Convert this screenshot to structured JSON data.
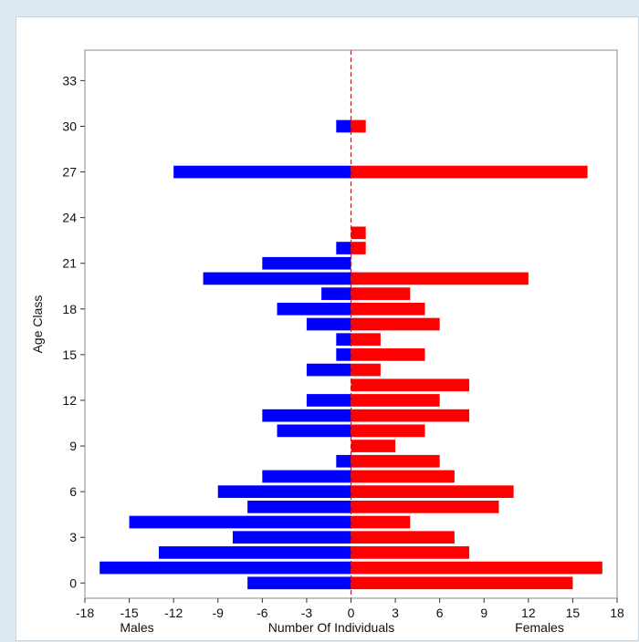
{
  "chart_data": {
    "type": "bar",
    "orientation": "horizontal",
    "layout": "population-pyramid",
    "ylabel": "Age Class",
    "xlabel": "Number Of Individuals",
    "left_label": "Males",
    "right_label": "Females",
    "xlim": [
      -18,
      18
    ],
    "xticks": [
      -18,
      -15,
      -12,
      -9,
      -6,
      -3,
      0,
      3,
      6,
      9,
      12,
      15,
      18
    ],
    "ylim": [
      -1,
      35
    ],
    "yticks": [
      0,
      3,
      6,
      9,
      12,
      15,
      18,
      21,
      24,
      27,
      30,
      33
    ],
    "grid": false,
    "zero_line": "dashed",
    "categories": [
      0,
      1,
      2,
      3,
      4,
      5,
      6,
      7,
      8,
      9,
      10,
      11,
      12,
      13,
      14,
      15,
      16,
      17,
      18,
      19,
      20,
      21,
      22,
      23,
      24,
      25,
      26,
      27,
      28,
      29,
      30,
      31,
      32,
      33
    ],
    "series": [
      {
        "name": "Males",
        "color": "#0000ff",
        "values": [
          -7,
          -17,
          -13,
          -8,
          -15,
          -7,
          -9,
          -6,
          -1,
          0,
          -5,
          -6,
          -3,
          0,
          -3,
          -1,
          -1,
          -3,
          -5,
          -2,
          -10,
          -6,
          -1,
          0,
          0,
          0,
          0,
          -12,
          0,
          0,
          -1,
          0,
          0,
          0
        ]
      },
      {
        "name": "Females",
        "color": "#ff0000",
        "values": [
          15,
          17,
          8,
          7,
          4,
          10,
          11,
          7,
          6,
          3,
          5,
          8,
          6,
          8,
          2,
          5,
          2,
          6,
          5,
          4,
          12,
          0,
          1,
          1,
          0,
          0,
          0,
          16,
          0,
          0,
          1,
          0,
          0,
          0
        ]
      }
    ],
    "zero_line_color": "#b22222"
  }
}
